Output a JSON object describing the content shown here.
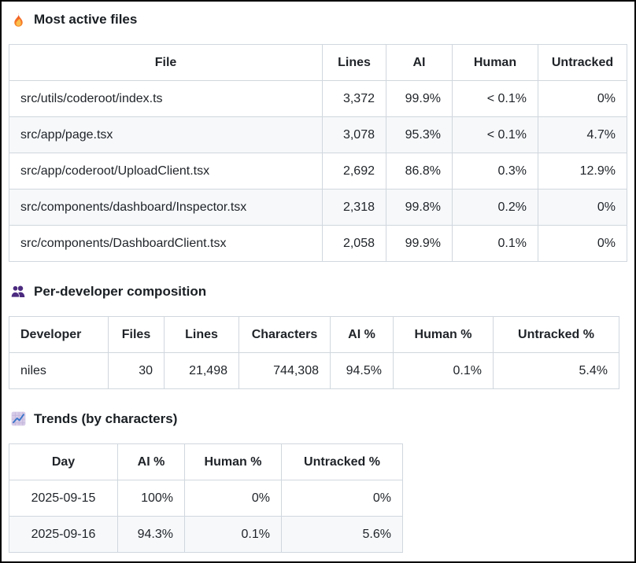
{
  "theme": {
    "frame_color": "#000000",
    "table_border_color": "#d0d7de",
    "row_stripe_color": "#f6f8fa",
    "text_color": "#1f2328",
    "flame_color_top": "#ef4e24",
    "flame_color_bottom": "#f98e2b",
    "flame_inner_color": "#fbbf4d",
    "people_icon_color": "#4b2a7f",
    "chart_icon_bg": "#d7cce8",
    "chart_icon_grid": "#c2b4da",
    "chart_icon_line": "#3574c9"
  },
  "sections": [
    {
      "title": "Most active files",
      "icon": "flame-icon",
      "table": {
        "headers": [
          "File",
          "Lines",
          "AI",
          "Human",
          "Untracked"
        ],
        "rows": [
          [
            "src/utils/coderoot/index.ts",
            "3,372",
            "99.9%",
            "< 0.1%",
            "0%"
          ],
          [
            "src/app/page.tsx",
            "3,078",
            "95.3%",
            "< 0.1%",
            "4.7%"
          ],
          [
            "src/app/coderoot/UploadClient.tsx",
            "2,692",
            "86.8%",
            "0.3%",
            "12.9%"
          ],
          [
            "src/components/dashboard/Inspector.tsx",
            "2,318",
            "99.8%",
            "0.2%",
            "0%"
          ],
          [
            "src/components/DashboardClient.tsx",
            "2,058",
            "99.9%",
            "0.1%",
            "0%"
          ]
        ]
      }
    },
    {
      "title": "Per-developer composition",
      "icon": "people-icon",
      "table": {
        "headers": [
          "Developer",
          "Files",
          "Lines",
          "Characters",
          "AI %",
          "Human %",
          "Untracked %"
        ],
        "rows": [
          [
            "niles",
            "30",
            "21,498",
            "744,308",
            "94.5%",
            "0.1%",
            "5.4%"
          ]
        ]
      }
    },
    {
      "title": "Trends (by characters)",
      "icon": "trend-chart-icon",
      "table": {
        "headers": [
          "Day",
          "AI %",
          "Human %",
          "Untracked %"
        ],
        "rows": [
          [
            "2025-09-15",
            "100%",
            "0%",
            "0%"
          ],
          [
            "2025-09-16",
            "94.3%",
            "0.1%",
            "5.6%"
          ]
        ]
      }
    }
  ]
}
